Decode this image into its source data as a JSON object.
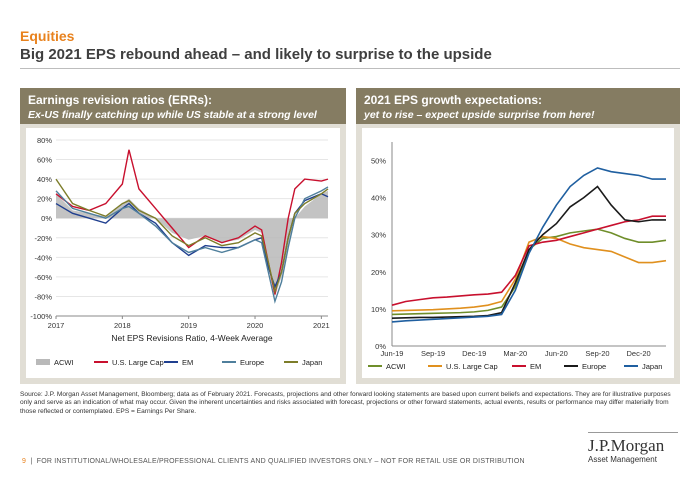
{
  "header": {
    "section": "Equities",
    "headline": "Big 2021 EPS rebound ahead – and likely to surprise to the upside"
  },
  "left_panel": {
    "title": "Earnings revision ratios (ERRs):",
    "subtitle": "Ex-US finally catching up while US stable at a strong level"
  },
  "right_panel": {
    "title": "2021 EPS growth expectations:",
    "subtitle": "yet to rise – expect upside surprise from here!"
  },
  "colors": {
    "acwi": "#6f8e2a",
    "us": "#c8102e",
    "em": "#1f3f8f",
    "europe": "#4f7f9c",
    "japan": "#7d7d2a",
    "eurpanel": "#1b1b1b",
    "japanpanel": "#1f5fa0",
    "uslc": "#e0901e",
    "acwi_bar": "#b9b9b9"
  },
  "chart_data": [
    {
      "type": "line",
      "title": "Net EPS Revisions Ratio, 4-Week Average",
      "ylim": [
        -100,
        80
      ],
      "yticks": [
        "80%",
        "60%",
        "40%",
        "20%",
        "0%",
        "-20%",
        "-40%",
        "-60%",
        "-80%",
        "-100%"
      ],
      "xticks": [
        "2017",
        "2018",
        "2019",
        "2020",
        "2021"
      ],
      "x": [
        2017.0,
        2017.25,
        2017.5,
        2017.75,
        2018.0,
        2018.1,
        2018.25,
        2018.5,
        2018.75,
        2019.0,
        2019.25,
        2019.5,
        2019.75,
        2020.0,
        2020.1,
        2020.2,
        2020.3,
        2020.4,
        2020.5,
        2020.6,
        2020.75,
        2021.0,
        2021.1
      ],
      "series": [
        {
          "name": "ACWI",
          "values": [
            25,
            8,
            5,
            2,
            15,
            20,
            10,
            0,
            -15,
            -22,
            -18,
            -25,
            -22,
            -12,
            -15,
            -50,
            -80,
            -60,
            -30,
            0,
            12,
            25,
            28
          ]
        },
        {
          "name": "U.S. Large Cap",
          "values": [
            25,
            12,
            8,
            15,
            35,
            70,
            30,
            10,
            -10,
            -30,
            -18,
            -25,
            -20,
            -8,
            -12,
            -45,
            -78,
            -45,
            0,
            30,
            40,
            38,
            40
          ]
        },
        {
          "name": "EM",
          "values": [
            15,
            5,
            0,
            -5,
            10,
            15,
            5,
            -5,
            -25,
            -38,
            -28,
            -30,
            -30,
            -22,
            -20,
            -50,
            -70,
            -55,
            -20,
            5,
            18,
            25,
            22
          ]
        },
        {
          "name": "Europe",
          "values": [
            28,
            10,
            5,
            0,
            10,
            12,
            5,
            -8,
            -25,
            -35,
            -30,
            -35,
            -30,
            -22,
            -25,
            -55,
            -85,
            -65,
            -30,
            0,
            20,
            28,
            32
          ]
        },
        {
          "name": "Japan",
          "values": [
            40,
            15,
            8,
            2,
            15,
            18,
            8,
            0,
            -18,
            -28,
            -20,
            -28,
            -25,
            -15,
            -18,
            -45,
            -75,
            -55,
            -20,
            5,
            15,
            25,
            30
          ]
        }
      ],
      "legend": [
        "ACWI",
        "U.S. Large Cap",
        "EM",
        "Europe",
        "Japan"
      ],
      "legend_position": "bottom"
    },
    {
      "type": "line",
      "ylim": [
        0,
        55
      ],
      "yticks": [
        "50%",
        "40%",
        "30%",
        "20%",
        "10%",
        "0%"
      ],
      "xticks": [
        "Jun-19",
        "Sep-19",
        "Dec-19",
        "Mar-20",
        "Jun-20",
        "Sep-20",
        "Dec-20"
      ],
      "x": [
        0,
        1,
        2,
        3,
        4,
        5,
        6,
        7,
        8,
        9,
        10,
        11,
        12,
        13,
        14,
        15,
        16,
        17,
        18,
        19,
        20
      ],
      "series": [
        {
          "name": "ACWI",
          "values": [
            8.5,
            8.6,
            8.7,
            8.8,
            8.9,
            9.0,
            9.2,
            9.6,
            10.5,
            16.0,
            26.0,
            29.0,
            29.5,
            30.5,
            31.0,
            31.5,
            30.5,
            29.0,
            28.0,
            28.0,
            28.5
          ]
        },
        {
          "name": "U.S. Large Cap",
          "values": [
            9.5,
            9.6,
            9.7,
            9.8,
            10.0,
            10.2,
            10.5,
            11.0,
            12.0,
            18.0,
            28.0,
            29.5,
            29.0,
            27.5,
            26.5,
            26.0,
            25.5,
            24.0,
            22.5,
            22.5,
            23.0
          ]
        },
        {
          "name": "EM",
          "values": [
            11.0,
            12.0,
            12.5,
            13.0,
            13.2,
            13.5,
            13.8,
            14.0,
            14.5,
            19.0,
            27.0,
            28.0,
            28.5,
            29.5,
            30.5,
            31.5,
            32.5,
            33.5,
            34.0,
            35.0,
            35.0
          ]
        },
        {
          "name": "Europe",
          "values": [
            7.5,
            7.6,
            7.7,
            7.7,
            7.8,
            7.9,
            8.0,
            8.2,
            9.0,
            17.0,
            26.0,
            30.0,
            33.0,
            37.5,
            40.0,
            43.0,
            38.0,
            34.0,
            33.5,
            34.0,
            34.0
          ]
        },
        {
          "name": "Japan",
          "values": [
            6.5,
            6.8,
            7.0,
            7.2,
            7.4,
            7.6,
            7.8,
            8.0,
            8.5,
            15.0,
            25.0,
            32.0,
            38.0,
            43.0,
            46.0,
            48.0,
            47.0,
            46.5,
            46.0,
            45.0,
            45.0
          ]
        }
      ],
      "legend": [
        "ACWI",
        "U.S. Large Cap",
        "EM",
        "Europe",
        "Japan"
      ],
      "legend_position": "bottom"
    }
  ],
  "source": "Source: J.P. Morgan Asset Management, Bloomberg; data as of February 2021. Forecasts, projections and other forward looking statements are based upon current beliefs and expectations. They are for illustrative purposes only and serve as an indication of what may occur. Given the inherent uncertainties and risks associated with forecast, projections or other forward statements, actual events, results or performance may differ materially from those reflected or contemplated. EPS = Earnings Per Share.",
  "footer": {
    "page": "9",
    "text": "FOR INSTITUTIONAL/WHOLESALE/PROFESSIONAL CLIENTS AND QUALIFIED INVESTORS ONLY – NOT FOR RETAIL USE OR DISTRIBUTION"
  },
  "brand": {
    "name": "J.P.Morgan",
    "sub": "Asset Management"
  }
}
